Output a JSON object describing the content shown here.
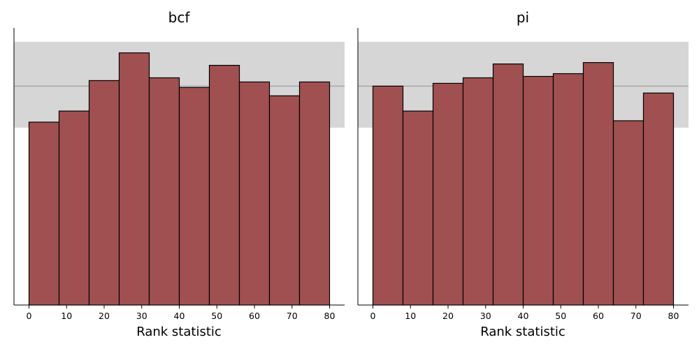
{
  "chart_data": [
    {
      "type": "bar",
      "title": "bcf",
      "xlabel": "Rank statistic",
      "ylabel": "",
      "bin_edges": [
        0,
        8,
        16,
        24,
        32,
        40,
        48,
        56,
        64,
        72,
        80
      ],
      "values": [
        66,
        70,
        81,
        91,
        82,
        78.5,
        86.5,
        80.5,
        75.5,
        80.5
      ],
      "xticks": [
        0,
        10,
        20,
        30,
        40,
        50,
        60,
        70,
        80
      ],
      "xlim": [
        -4,
        84
      ],
      "ylim": [
        0,
        100
      ],
      "reference_line": 79,
      "reference_band": [
        64,
        95
      ],
      "bar_color": "#a05050",
      "band_color": "#d6d6d6",
      "ref_line_color": "#a8a8a8"
    },
    {
      "type": "bar",
      "title": "pi",
      "xlabel": "Rank statistic",
      "ylabel": "",
      "bin_edges": [
        0,
        8,
        16,
        24,
        32,
        40,
        48,
        56,
        64,
        72,
        80
      ],
      "values": [
        79,
        70,
        80,
        82,
        87,
        82.5,
        83.5,
        87.5,
        66.5,
        76.5
      ],
      "xticks": [
        0,
        10,
        20,
        30,
        40,
        50,
        60,
        70,
        80
      ],
      "xlim": [
        -4,
        84
      ],
      "ylim": [
        0,
        100
      ],
      "reference_line": 79,
      "reference_band": [
        64,
        95
      ],
      "bar_color": "#a05050",
      "band_color": "#d6d6d6",
      "ref_line_color": "#a8a8a8"
    }
  ]
}
